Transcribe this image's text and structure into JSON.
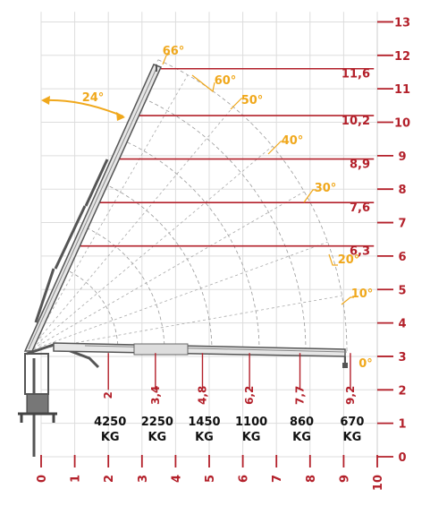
{
  "diagram": {
    "colors": {
      "accent_red": "#b3202a",
      "angle_amber": "#f0a81c",
      "grid_gray": "#dddddd",
      "crane_gray": "#666666"
    },
    "y_axis": {
      "ticks": [
        "0",
        "1",
        "2",
        "3",
        "4",
        "5",
        "6",
        "7",
        "8",
        "9",
        "10",
        "11",
        "12",
        "13"
      ]
    },
    "x_axis": {
      "ticks": [
        "0",
        "1",
        "2",
        "3",
        "4",
        "5",
        "6",
        "7",
        "8",
        "9",
        "10"
      ]
    },
    "reach_heights": [
      {
        "label": "11,6",
        "value": 11.6
      },
      {
        "label": "10,2",
        "value": 10.2
      },
      {
        "label": "8,9",
        "value": 8.9
      },
      {
        "label": "7,6",
        "value": 7.6
      },
      {
        "label": "6,3",
        "value": 6.3
      }
    ],
    "angles": [
      "66°",
      "60°",
      "50°",
      "40°",
      "30°",
      "20°",
      "10°",
      "0°"
    ],
    "slew_angle": "24°",
    "outreach": [
      {
        "distance": "2",
        "value": 2.0,
        "load": "4250",
        "unit": "KG"
      },
      {
        "distance": "3,4",
        "value": 3.4,
        "load": "2250",
        "unit": "KG"
      },
      {
        "distance": "4,8",
        "value": 4.8,
        "load": "1450",
        "unit": "KG"
      },
      {
        "distance": "6,2",
        "value": 6.2,
        "load": "1100",
        "unit": "KG"
      },
      {
        "distance": "7,7",
        "value": 7.7,
        "load": "860",
        "unit": "KG"
      },
      {
        "distance": "9,2",
        "value": 9.2,
        "load": "670",
        "unit": "KG"
      }
    ]
  }
}
